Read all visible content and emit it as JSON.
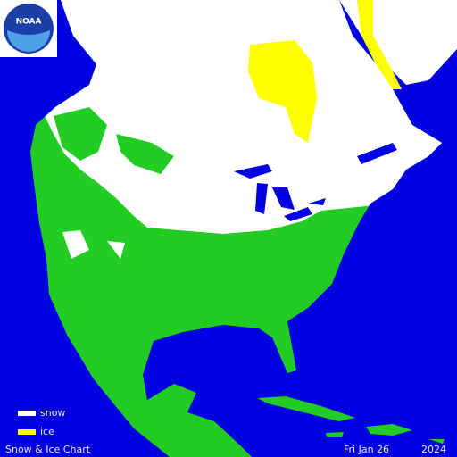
{
  "map": {
    "logo": "NOAA",
    "legend": [
      {
        "label": "snow",
        "color": "#ffffff"
      },
      {
        "label": "ice",
        "color": "#ffff00"
      }
    ],
    "footer": {
      "title": "Snow & Ice Chart",
      "date": "Fri Jan 26",
      "year": "2024"
    }
  }
}
